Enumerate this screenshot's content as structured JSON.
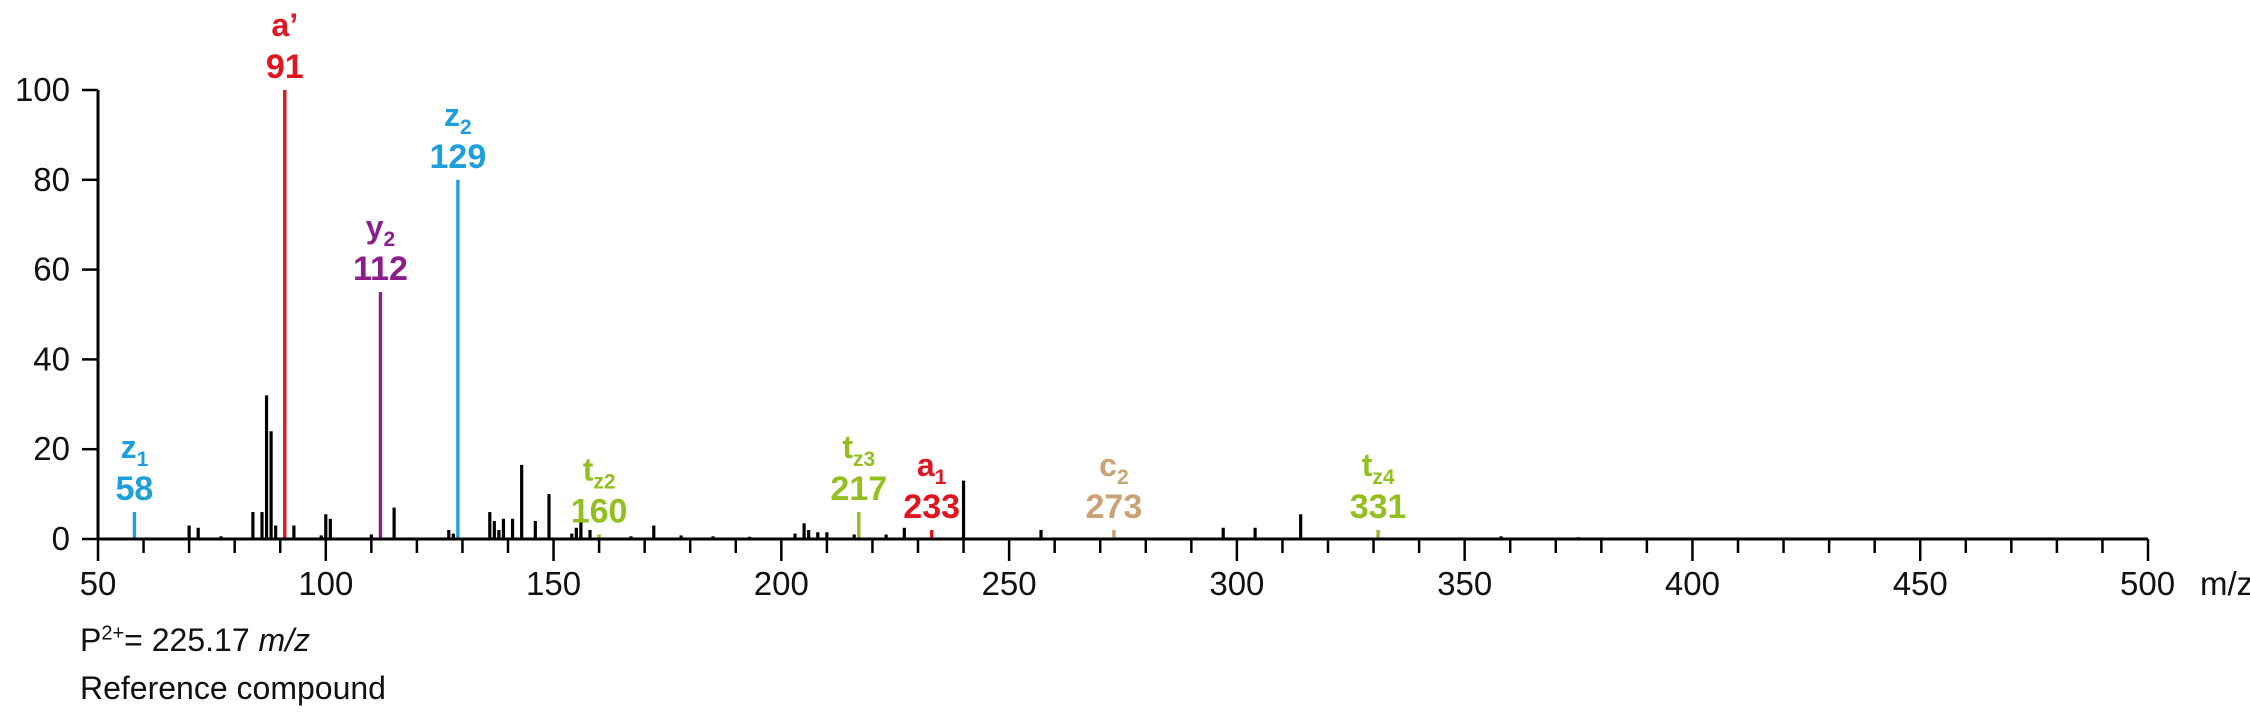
{
  "chart_data": {
    "type": "bar",
    "xlabel": "m/z",
    "xlim": [
      50,
      500
    ],
    "ylim": [
      0,
      100
    ],
    "xticks": [
      50,
      100,
      150,
      200,
      250,
      300,
      350,
      400,
      450,
      500
    ],
    "xtick_labels": [
      "50",
      "100",
      "150",
      "200",
      "250",
      "300",
      "350",
      "400",
      "450",
      "500"
    ],
    "yticks": [
      0,
      20,
      40,
      60,
      80,
      100
    ],
    "ytick_labels": [
      "0",
      "20",
      "40",
      "60",
      "80",
      "100"
    ],
    "x_axis_unit": "m/z",
    "grid": false,
    "colors": {
      "peak": "#000000",
      "a": "#e0151f",
      "y": "#8b1e8a",
      "z": "#1d9fdb",
      "t": "#93c01f",
      "c": "#c9a373"
    },
    "peaks": [
      {
        "x": 70,
        "y": 3
      },
      {
        "x": 72,
        "y": 2.5
      },
      {
        "x": 77,
        "y": 0.6
      },
      {
        "x": 84,
        "y": 6
      },
      {
        "x": 86,
        "y": 6
      },
      {
        "x": 87,
        "y": 32
      },
      {
        "x": 88,
        "y": 24
      },
      {
        "x": 89,
        "y": 3
      },
      {
        "x": 93,
        "y": 3
      },
      {
        "x": 99,
        "y": 0.8
      },
      {
        "x": 100,
        "y": 5.5
      },
      {
        "x": 101,
        "y": 4.5
      },
      {
        "x": 110,
        "y": 1
      },
      {
        "x": 115,
        "y": 7
      },
      {
        "x": 127,
        "y": 2
      },
      {
        "x": 128,
        "y": 1.2
      },
      {
        "x": 136,
        "y": 6
      },
      {
        "x": 137,
        "y": 4
      },
      {
        "x": 138,
        "y": 2
      },
      {
        "x": 139,
        "y": 4.5
      },
      {
        "x": 141,
        "y": 4.5
      },
      {
        "x": 143,
        "y": 16.5
      },
      {
        "x": 146,
        "y": 4
      },
      {
        "x": 149,
        "y": 10
      },
      {
        "x": 154,
        "y": 1.2
      },
      {
        "x": 155,
        "y": 2.5
      },
      {
        "x": 156,
        "y": 5.5
      },
      {
        "x": 158,
        "y": 2
      },
      {
        "x": 167,
        "y": 0.6
      },
      {
        "x": 172,
        "y": 3
      },
      {
        "x": 178,
        "y": 0.8
      },
      {
        "x": 185,
        "y": 0.6
      },
      {
        "x": 193,
        "y": 0.5
      },
      {
        "x": 203,
        "y": 1.2
      },
      {
        "x": 205,
        "y": 3.5
      },
      {
        "x": 206,
        "y": 2
      },
      {
        "x": 208,
        "y": 1.5
      },
      {
        "x": 210,
        "y": 1.5
      },
      {
        "x": 216,
        "y": 1
      },
      {
        "x": 223,
        "y": 1
      },
      {
        "x": 227,
        "y": 2.5
      },
      {
        "x": 240,
        "y": 13
      },
      {
        "x": 257,
        "y": 2
      },
      {
        "x": 297,
        "y": 2.5
      },
      {
        "x": 304,
        "y": 2.5
      },
      {
        "x": 314,
        "y": 5.5
      },
      {
        "x": 358,
        "y": 0.6
      },
      {
        "x": 375,
        "y": 0.4
      }
    ],
    "annotations": [
      {
        "x": 58,
        "y": 6,
        "base": "z",
        "sub": "1",
        "value": "58",
        "color": "#1d9fdb"
      },
      {
        "x": 91,
        "y": 100,
        "base": "a’",
        "sub": "",
        "value": "91",
        "color": "#e0151f"
      },
      {
        "x": 112,
        "y": 55,
        "base": "y",
        "sub": "2",
        "value": "112",
        "color": "#8b1e8a"
      },
      {
        "x": 129,
        "y": 80,
        "base": "z",
        "sub": "2",
        "value": "129",
        "color": "#1d9fdb"
      },
      {
        "x": 160,
        "y": 1,
        "base": "t",
        "sub": "z2",
        "value": "160",
        "color": "#93c01f"
      },
      {
        "x": 217,
        "y": 6,
        "base": "t",
        "sub": "z3",
        "value": "217",
        "color": "#93c01f"
      },
      {
        "x": 233,
        "y": 2,
        "base": "a",
        "sub": "1",
        "value": "233",
        "color": "#e0151f"
      },
      {
        "x": 273,
        "y": 2,
        "base": "c",
        "sub": "2",
        "value": "273",
        "color": "#c9a373"
      },
      {
        "x": 331,
        "y": 2,
        "base": "t",
        "sub": "z4",
        "value": "331",
        "color": "#93c01f"
      }
    ]
  },
  "info": {
    "precursor_prefix": "P",
    "precursor_sup": "2+",
    "precursor_value": "= 225.17 ",
    "precursor_unit": "m/z",
    "compound": "Reference compound"
  }
}
